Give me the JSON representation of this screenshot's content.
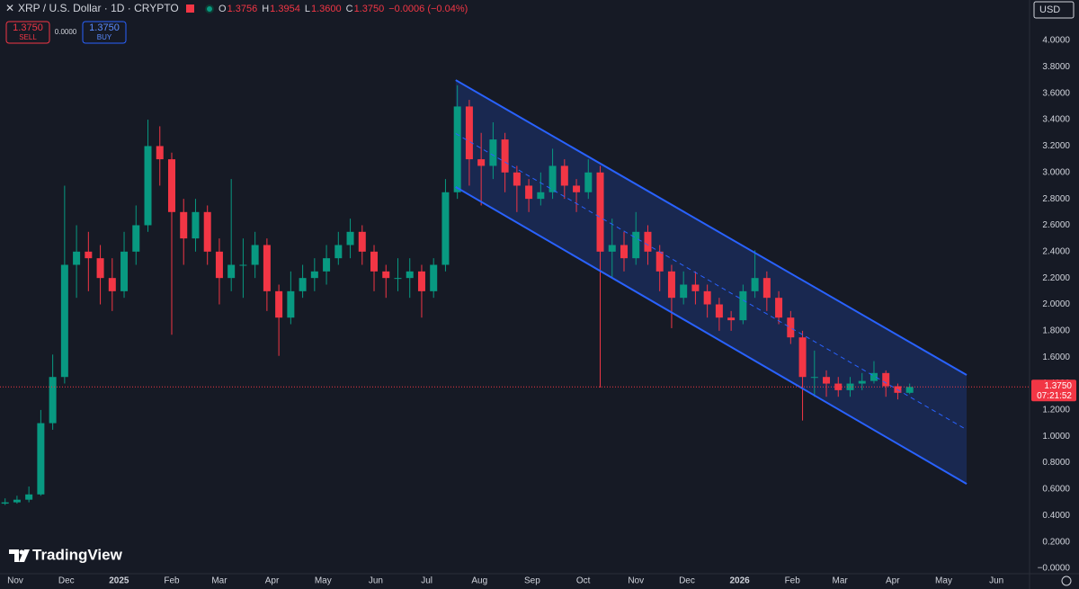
{
  "chart_data": {
    "type": "candlestick",
    "title": "XRP / U.S. Dollar · 1D · CRYPTO",
    "header": {
      "o_tag": "O",
      "o": "1.3756",
      "h_tag": "H",
      "h": "1.3954",
      "l_tag": "L",
      "l": "1.3600",
      "c_tag": "C",
      "c": "1.3750",
      "change": "−0.0006 (−0.04%)"
    },
    "trade": {
      "sell_price": "1.3750",
      "sell": "SELL",
      "spread": "0.0000",
      "buy_price": "1.3750",
      "buy": "BUY"
    },
    "currency": "USD",
    "brand": "TradingView",
    "up_color": "#089981",
    "down_color": "#f23645",
    "channel_color": "#2962ff",
    "x": [
      -6,
      1,
      8,
      15,
      22,
      29,
      36,
      43,
      50,
      57,
      64,
      71,
      78,
      85,
      92,
      99,
      106,
      113,
      120,
      127,
      134,
      141,
      148,
      155,
      162,
      169,
      176,
      183,
      190,
      197,
      204,
      211,
      218,
      225,
      232,
      239,
      246,
      253,
      260,
      267,
      274,
      281,
      288,
      295,
      302,
      309,
      316,
      323,
      330,
      337,
      344,
      351,
      358,
      365,
      372,
      379,
      386,
      393,
      400,
      407,
      414,
      421,
      428,
      435,
      442,
      449,
      456,
      463,
      470,
      477,
      484,
      491,
      498,
      505,
      512,
      519,
      526
    ],
    "open": [
      0.49,
      0.5,
      0.52,
      0.56,
      1.1,
      1.45,
      2.3,
      2.4,
      2.35,
      2.2,
      2.1,
      2.4,
      2.6,
      3.2,
      3.1,
      2.7,
      2.5,
      2.7,
      2.4,
      2.2,
      2.3,
      2.3,
      2.45,
      2.1,
      1.9,
      2.1,
      2.2,
      2.25,
      2.35,
      2.45,
      2.55,
      2.4,
      2.25,
      2.2,
      2.2,
      2.25,
      2.1,
      2.3,
      2.85,
      3.5,
      3.1,
      3.05,
      3.25,
      3.0,
      2.9,
      2.8,
      2.85,
      3.05,
      2.9,
      2.85,
      3.0,
      2.4,
      2.45,
      2.35,
      2.55,
      2.4,
      2.25,
      2.05,
      2.15,
      2.1,
      2.0,
      1.9,
      1.88,
      2.1,
      2.2,
      2.05,
      1.9,
      1.75,
      1.45,
      1.45,
      1.4,
      1.35,
      1.4,
      1.42,
      1.48,
      1.38,
      1.33
    ],
    "high": [
      0.53,
      0.55,
      0.62,
      1.2,
      1.62,
      2.9,
      2.6,
      2.55,
      2.45,
      2.35,
      2.55,
      2.75,
      3.4,
      3.35,
      3.15,
      2.8,
      2.8,
      2.75,
      2.5,
      2.95,
      2.5,
      2.55,
      2.5,
      2.15,
      2.25,
      2.3,
      2.35,
      2.45,
      2.55,
      2.65,
      2.6,
      2.45,
      2.3,
      2.35,
      2.35,
      2.3,
      2.35,
      2.95,
      3.66,
      3.55,
      3.3,
      3.38,
      3.3,
      3.05,
      2.95,
      3.0,
      3.18,
      3.1,
      2.95,
      3.1,
      3.05,
      2.65,
      2.55,
      2.7,
      2.6,
      2.45,
      2.3,
      2.25,
      2.25,
      2.15,
      2.05,
      1.95,
      2.15,
      2.41,
      2.25,
      2.1,
      1.95,
      1.8,
      1.65,
      1.5,
      1.45,
      1.45,
      1.48,
      1.57,
      1.5,
      1.4,
      1.4
    ],
    "low": [
      0.48,
      0.49,
      0.5,
      0.55,
      1.05,
      1.4,
      2.05,
      2.1,
      2.0,
      1.95,
      2.05,
      2.3,
      2.55,
      2.9,
      1.77,
      2.3,
      2.4,
      2.3,
      2.0,
      2.1,
      2.05,
      2.2,
      1.95,
      1.61,
      1.85,
      2.05,
      2.1,
      2.15,
      2.3,
      2.35,
      2.3,
      2.1,
      2.05,
      2.1,
      2.05,
      1.9,
      2.05,
      2.25,
      2.8,
      2.9,
      2.75,
      2.95,
      2.85,
      2.7,
      2.7,
      2.75,
      2.8,
      2.8,
      2.7,
      2.8,
      1.37,
      2.2,
      2.25,
      2.3,
      2.3,
      2.1,
      1.82,
      2.0,
      2.0,
      1.9,
      1.8,
      1.8,
      1.85,
      2.05,
      1.95,
      1.85,
      1.7,
      1.12,
      1.3,
      1.3,
      1.3,
      1.3,
      1.35,
      1.4,
      1.3,
      1.28,
      1.32
    ],
    "close": [
      0.5,
      0.52,
      0.56,
      1.1,
      1.45,
      2.3,
      2.4,
      2.35,
      2.2,
      2.1,
      2.4,
      2.6,
      3.2,
      3.1,
      2.7,
      2.5,
      2.7,
      2.4,
      2.2,
      2.3,
      2.3,
      2.45,
      2.1,
      1.9,
      2.1,
      2.2,
      2.25,
      2.35,
      2.45,
      2.55,
      2.4,
      2.25,
      2.2,
      2.2,
      2.25,
      2.1,
      2.3,
      2.85,
      3.5,
      3.1,
      3.05,
      3.25,
      3.0,
      2.9,
      2.8,
      2.85,
      3.05,
      2.9,
      2.85,
      3.0,
      2.4,
      2.45,
      2.35,
      2.55,
      2.4,
      2.25,
      2.05,
      2.15,
      2.1,
      2.0,
      1.9,
      1.88,
      2.1,
      2.2,
      2.05,
      1.9,
      1.75,
      1.45,
      1.45,
      1.4,
      1.35,
      1.4,
      1.42,
      1.48,
      1.38,
      1.33,
      1.375
    ],
    "channel": {
      "x": [
        259,
        559.5
      ],
      "upper": [
        3.7,
        1.465
      ],
      "middle": [
        3.295,
        1.05
      ],
      "lower": [
        2.89,
        0.64
      ]
    },
    "last_price": {
      "value": 1.375,
      "label": "1.3750"
    },
    "countdown": "07:21:52",
    "xlim": [
      -9,
      596.5
    ],
    "ylim": [
      -0.041,
      4.307
    ],
    "grid": false,
    "xticks": [
      {
        "value": 0,
        "label": "Nov"
      },
      {
        "value": 30,
        "label": "Dec"
      },
      {
        "value": 61,
        "label": "2025"
      },
      {
        "value": 92,
        "label": "Feb"
      },
      {
        "value": 120,
        "label": "Mar"
      },
      {
        "value": 151,
        "label": "Apr"
      },
      {
        "value": 181,
        "label": "May"
      },
      {
        "value": 212,
        "label": "Jun"
      },
      {
        "value": 242,
        "label": "Jul"
      },
      {
        "value": 273,
        "label": "Aug"
      },
      {
        "value": 304,
        "label": "Sep"
      },
      {
        "value": 334,
        "label": "Oct"
      },
      {
        "value": 365,
        "label": "Nov"
      },
      {
        "value": 395,
        "label": "Dec"
      },
      {
        "value": 426,
        "label": "2026"
      },
      {
        "value": 457,
        "label": "Feb"
      },
      {
        "value": 485,
        "label": "Mar"
      },
      {
        "value": 516,
        "label": "Apr"
      },
      {
        "value": 546,
        "label": "May"
      },
      {
        "value": 577,
        "label": "Jun"
      }
    ],
    "yticks": [
      {
        "value": 0,
        "label": "−0.0000"
      },
      {
        "value": 0.2,
        "label": "0.2000"
      },
      {
        "value": 0.4,
        "label": "0.4000"
      },
      {
        "value": 0.6,
        "label": "0.6000"
      },
      {
        "value": 0.8,
        "label": "0.8000"
      },
      {
        "value": 1.0,
        "label": "1.0000"
      },
      {
        "value": 1.2,
        "label": "1.2000"
      },
      {
        "value": 1.4,
        "label": "1.4000"
      },
      {
        "value": 1.6,
        "label": "1.6000"
      },
      {
        "value": 1.8,
        "label": "1.8000"
      },
      {
        "value": 2.0,
        "label": "2.0000"
      },
      {
        "value": 2.2,
        "label": "2.2000"
      },
      {
        "value": 2.4,
        "label": "2.4000"
      },
      {
        "value": 2.6,
        "label": "2.6000"
      },
      {
        "value": 2.8,
        "label": "2.8000"
      },
      {
        "value": 3.0,
        "label": "3.0000"
      },
      {
        "value": 3.2,
        "label": "3.2000"
      },
      {
        "value": 3.4,
        "label": "3.4000"
      },
      {
        "value": 3.6,
        "label": "3.6000"
      },
      {
        "value": 3.8,
        "label": "3.8000"
      },
      {
        "value": 4.0,
        "label": "4.0000"
      }
    ]
  }
}
